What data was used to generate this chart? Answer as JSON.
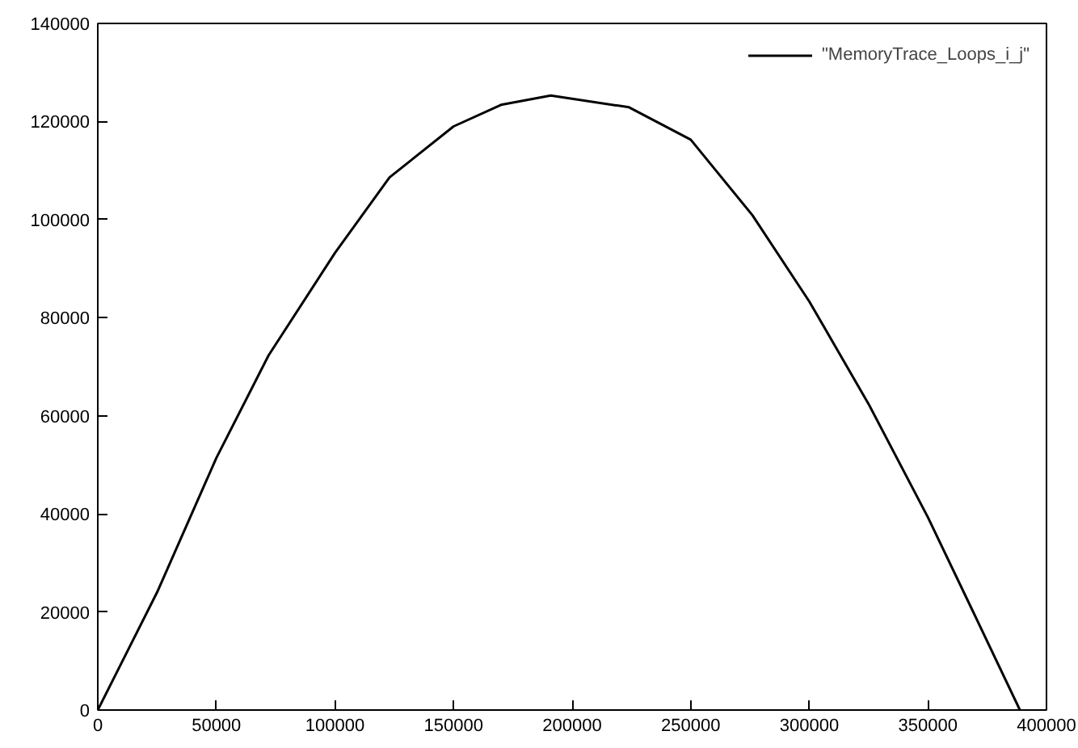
{
  "chart_data": {
    "type": "line",
    "x": [
      0,
      25000,
      50000,
      72000,
      100000,
      123000,
      150000,
      170000,
      191000,
      224000,
      250000,
      276000,
      300000,
      325000,
      350000,
      369500,
      388800
    ],
    "series": [
      {
        "name": "\"MemoryTrace_Loops_i_j\"",
        "color": "#000000",
        "values": [
          0,
          24000,
          51400,
          72300,
          93200,
          108600,
          119000,
          123400,
          125300,
          122900,
          116300,
          100900,
          83300,
          62400,
          39300,
          19600,
          0
        ]
      }
    ],
    "xlim": [
      0,
      400000
    ],
    "ylim": [
      0,
      140000
    ],
    "xticks": [
      0,
      50000,
      100000,
      150000,
      200000,
      250000,
      300000,
      350000,
      400000
    ],
    "yticks": [
      0,
      20000,
      40000,
      60000,
      80000,
      100000,
      120000,
      140000
    ],
    "legend": "top right",
    "grid": false,
    "marker": "none",
    "line_style": "solid"
  }
}
